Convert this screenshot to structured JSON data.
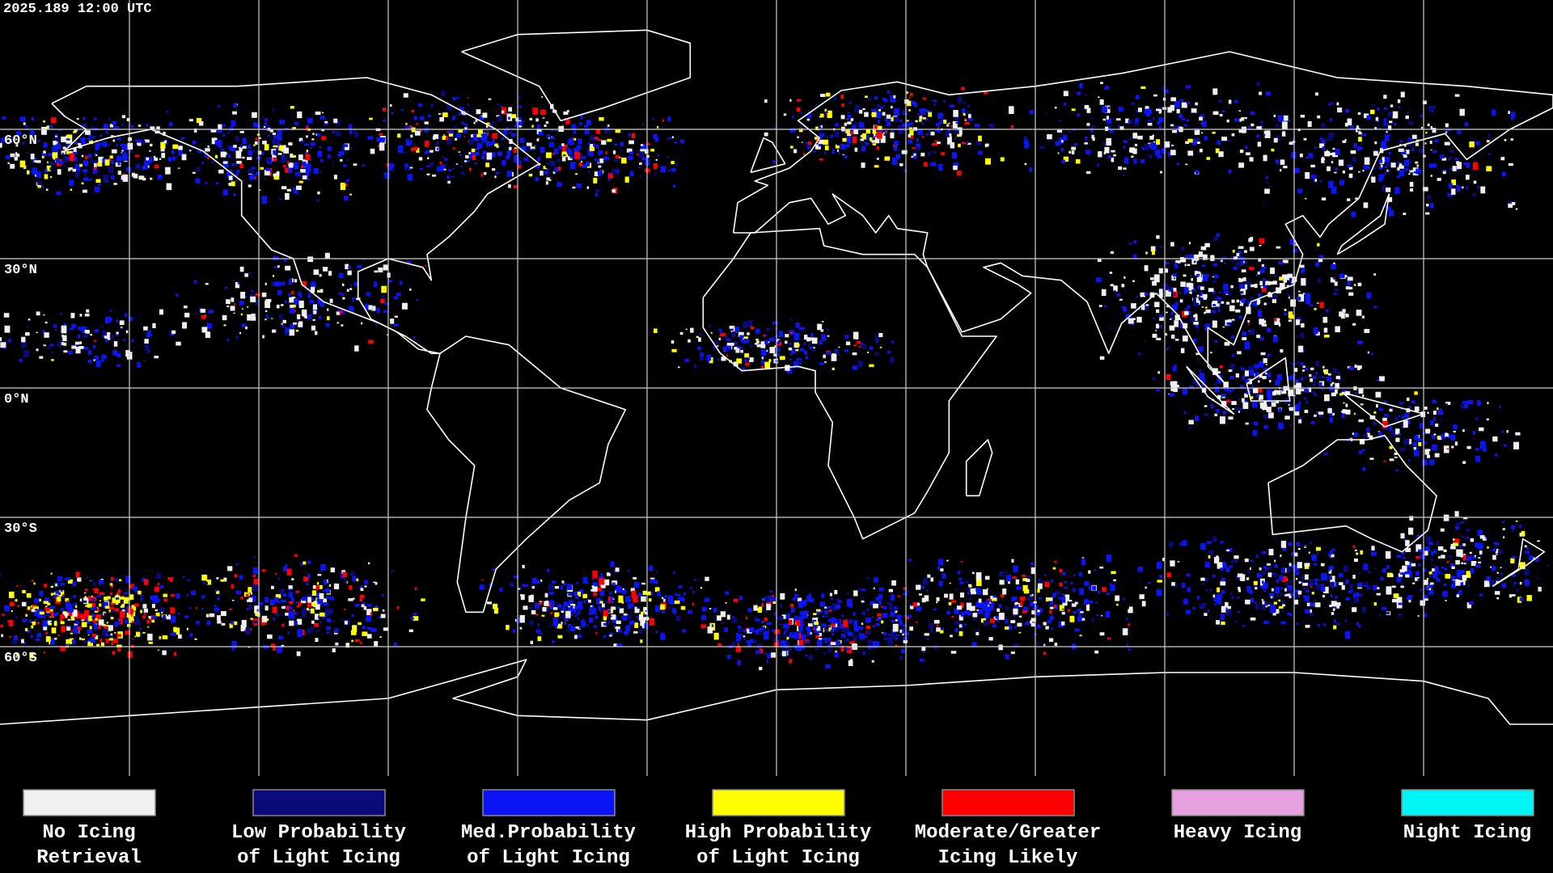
{
  "header": {
    "timestamp": "2025.189 12:00 UTC"
  },
  "map": {
    "lat_lines": [
      {
        "value": 60,
        "label": "60°N"
      },
      {
        "value": 30,
        "label": "30°N"
      },
      {
        "value": 0,
        "label": "0°N"
      },
      {
        "value": -30,
        "label": "30°S"
      },
      {
        "value": -60,
        "label": "60°S"
      }
    ]
  },
  "legend": [
    {
      "color": "#f0f0f0",
      "label": [
        "No Icing",
        "Retrieval"
      ]
    },
    {
      "color": "#0a0a7a",
      "label": [
        "Low Probability",
        "of Light Icing"
      ]
    },
    {
      "color": "#0a14f5",
      "label": [
        "Med.Probability",
        "of Light Icing"
      ]
    },
    {
      "color": "#ffff00",
      "label": [
        "High Probability",
        "of Light Icing"
      ]
    },
    {
      "color": "#ff0000",
      "label": [
        "Moderate/Greater",
        "Icing Likely"
      ]
    },
    {
      "color": "#e6a0e0",
      "label": [
        "Heavy Icing"
      ]
    },
    {
      "color": "#00f5f5",
      "label": [
        "Night Icing"
      ]
    }
  ]
}
